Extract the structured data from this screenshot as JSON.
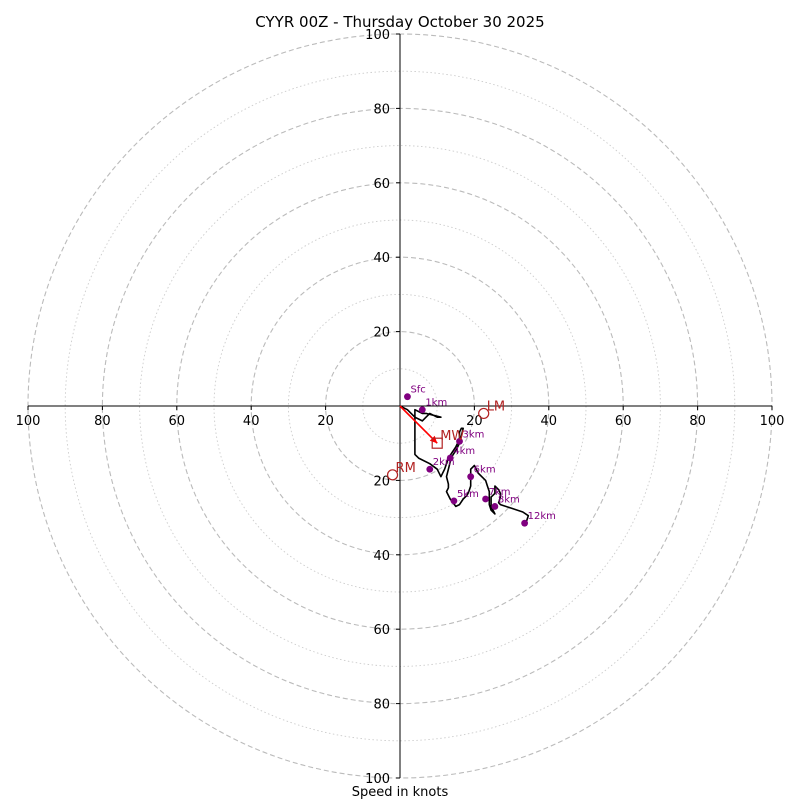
{
  "chart_data": {
    "type": "hodograph",
    "title": "CYYR 00Z - Thursday October 30 2025",
    "xlabel": "Speed in knots",
    "ylabel": "",
    "range_max": 100,
    "ring_step_major": 20,
    "ring_step_minor": 10,
    "tick_values": [
      20,
      40,
      60,
      80,
      100
    ],
    "x_tick_labels": [
      "100",
      "80",
      "60",
      "40",
      "20",
      "20",
      "40",
      "60",
      "80",
      "100"
    ],
    "y_tick_labels": [
      "100",
      "80",
      "60",
      "40",
      "20",
      "20",
      "40",
      "60",
      "80",
      "100"
    ],
    "hodograph_trace_uv": [
      [
        0,
        0
      ],
      [
        2,
        -1
      ],
      [
        4,
        -3
      ],
      [
        6,
        -4
      ],
      [
        7,
        -3
      ],
      [
        8,
        -2
      ],
      [
        10,
        -3
      ],
      [
        11,
        -3
      ],
      [
        7,
        -2
      ],
      [
        6,
        -2
      ],
      [
        4,
        -1
      ],
      [
        4,
        -3
      ],
      [
        4,
        -5
      ],
      [
        4,
        -8
      ],
      [
        4,
        -10
      ],
      [
        4,
        -13
      ],
      [
        5,
        -14
      ],
      [
        8,
        -15.5
      ],
      [
        10,
        -17
      ],
      [
        11,
        -19
      ],
      [
        12,
        -17
      ],
      [
        13,
        -14
      ],
      [
        14,
        -12.5
      ],
      [
        15,
        -11
      ],
      [
        16,
        -9
      ],
      [
        16,
        -7
      ],
      [
        16.5,
        -6
      ],
      [
        17,
        -6
      ],
      [
        16.5,
        -8
      ],
      [
        16,
        -10
      ],
      [
        15,
        -12
      ],
      [
        14,
        -13.5
      ],
      [
        13.5,
        -15
      ],
      [
        13,
        -17
      ],
      [
        12.5,
        -19
      ],
      [
        13,
        -21
      ],
      [
        13,
        -22
      ],
      [
        12.5,
        -23
      ],
      [
        13.5,
        -25
      ],
      [
        15,
        -27
      ],
      [
        16,
        -26.5
      ],
      [
        17,
        -25
      ],
      [
        18,
        -24
      ],
      [
        18.5,
        -23
      ],
      [
        19,
        -21.5
      ],
      [
        19,
        -19
      ],
      [
        19,
        -17
      ],
      [
        20,
        -16
      ],
      [
        20.5,
        -17
      ],
      [
        21,
        -18
      ],
      [
        22,
        -19
      ],
      [
        23,
        -20
      ],
      [
        23.5,
        -21.5
      ],
      [
        24,
        -23
      ],
      [
        24,
        -25
      ],
      [
        24,
        -26.5
      ],
      [
        24.5,
        -28
      ],
      [
        25.5,
        -29
      ],
      [
        24.5,
        -27
      ],
      [
        24.5,
        -24.5
      ],
      [
        25.5,
        -23.5
      ],
      [
        25.5,
        -22.5
      ],
      [
        25.5,
        -21.5
      ],
      [
        26.5,
        -22.5
      ],
      [
        27,
        -23.5
      ],
      [
        27,
        -24.5
      ],
      [
        26.5,
        -26
      ],
      [
        27,
        -26.5
      ],
      [
        30,
        -27.5
      ],
      [
        33,
        -28.5
      ],
      [
        34.5,
        -29.5
      ],
      [
        34,
        -31
      ]
    ],
    "height_markers": [
      {
        "label": "Sfc",
        "u": 2,
        "v": 2.5
      },
      {
        "label": "1km",
        "u": 6,
        "v": -1
      },
      {
        "label": "2km",
        "u": 8,
        "v": -17
      },
      {
        "label": "3km",
        "u": 16,
        "v": -9.5
      },
      {
        "label": "4km",
        "u": 13.5,
        "v": -14
      },
      {
        "label": "5km",
        "u": 14.5,
        "v": -25.5
      },
      {
        "label": "6km",
        "u": 19,
        "v": -19
      },
      {
        "label": "7km",
        "u": 23,
        "v": -25
      },
      {
        "label": "8km",
        "u": 25.5,
        "v": -27
      },
      {
        "label": "12km",
        "u": 33.5,
        "v": -31.5
      }
    ],
    "storm_motion": [
      {
        "label": "LM",
        "u": 22.5,
        "v": -2,
        "marker": "circle"
      },
      {
        "label": "MW",
        "u": 10,
        "v": -10,
        "marker": "square"
      },
      {
        "label": "RM",
        "u": -2,
        "v": -18.5,
        "marker": "circle"
      }
    ],
    "shear_vector": {
      "from_uv": [
        0,
        0
      ],
      "to_uv": [
        10,
        -10
      ]
    },
    "colors": {
      "trace": "#000000",
      "height_marker": "#800080",
      "storm_motion": "#b22222",
      "shear_vector": "#ff0000",
      "major_ring": "#bbbbbb",
      "minor_ring": "#cccccc",
      "axis": "#000000"
    }
  }
}
